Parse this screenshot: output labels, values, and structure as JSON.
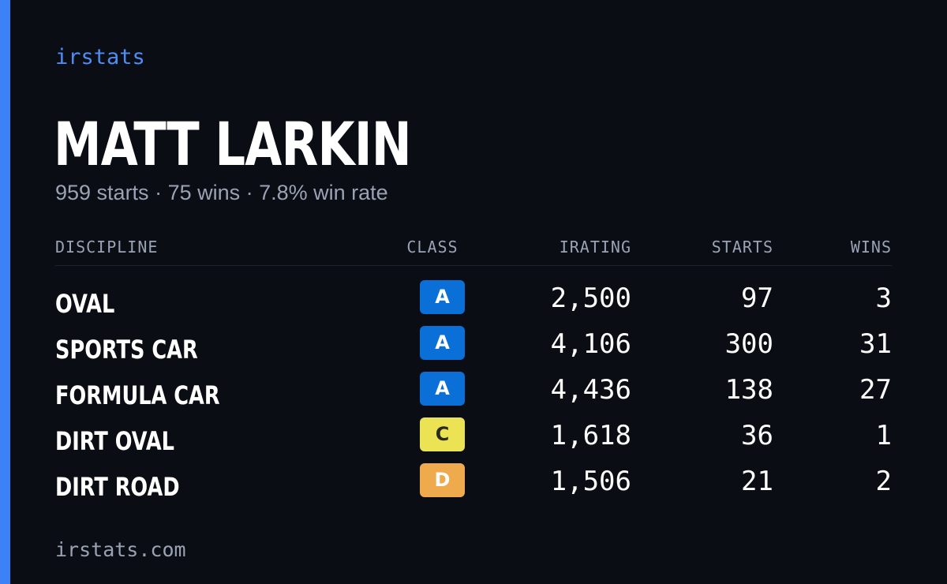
{
  "brand": "irstats",
  "driver": {
    "name": "MATT LARKIN",
    "starts_text": "959 starts",
    "wins_text": "75 wins",
    "win_rate_text": "7.8% win rate",
    "separator": " · "
  },
  "table": {
    "headers": {
      "discipline": "DISCIPLINE",
      "class": "CLASS",
      "irating": "IRATING",
      "starts": "STARTS",
      "wins": "WINS"
    },
    "rows": [
      {
        "discipline": "OVAL",
        "class": "A",
        "class_bg": "#0a6fd6",
        "class_fg": "#ffffff",
        "irating": "2,500",
        "starts": "97",
        "wins": "3"
      },
      {
        "discipline": "SPORTS CAR",
        "class": "A",
        "class_bg": "#0a6fd6",
        "class_fg": "#ffffff",
        "irating": "4,106",
        "starts": "300",
        "wins": "31"
      },
      {
        "discipline": "FORMULA CAR",
        "class": "A",
        "class_bg": "#0a6fd6",
        "class_fg": "#ffffff",
        "irating": "4,436",
        "starts": "138",
        "wins": "27"
      },
      {
        "discipline": "DIRT OVAL",
        "class": "C",
        "class_bg": "#ece354",
        "class_fg": "#2a2a1a",
        "irating": "1,618",
        "starts": "36",
        "wins": "1"
      },
      {
        "discipline": "DIRT ROAD",
        "class": "D",
        "class_bg": "#eeaa4c",
        "class_fg": "#ffffff",
        "irating": "1,506",
        "starts": "21",
        "wins": "2"
      }
    ]
  },
  "footer": "irstats.com",
  "colors": {
    "accent": "#3b82f6",
    "background": "#0b0d14",
    "muted_text": "#9aa3b5"
  }
}
